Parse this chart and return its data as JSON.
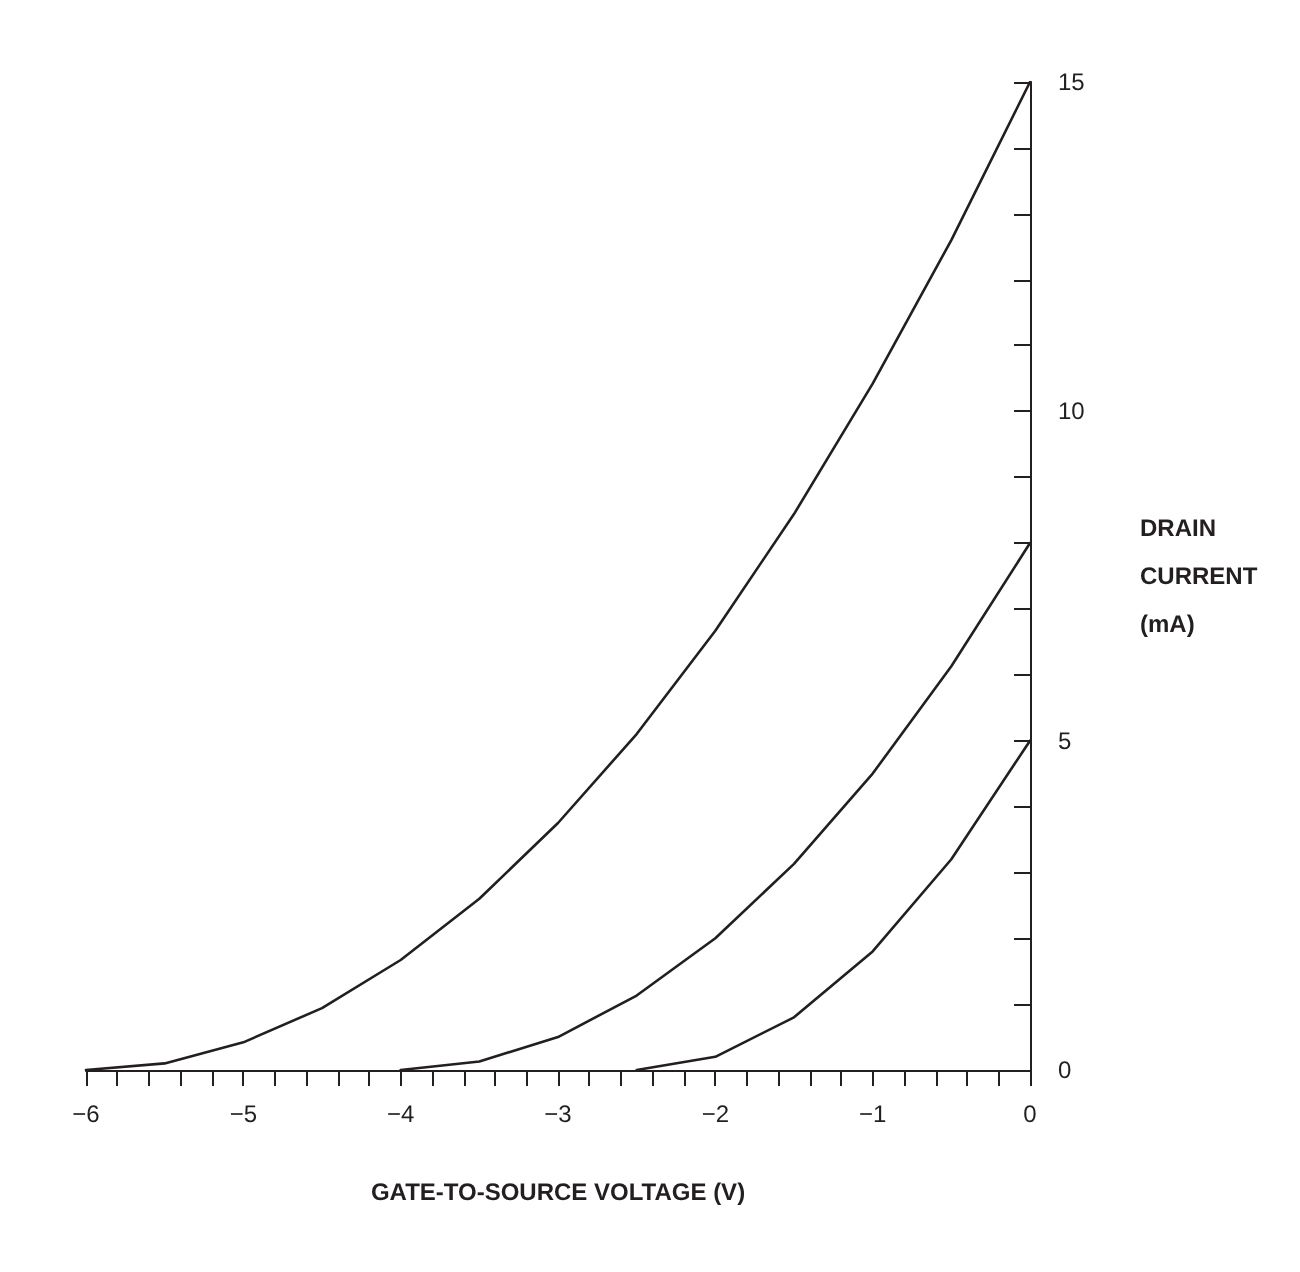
{
  "chart_data": {
    "type": "line",
    "xlabel": "GATE-TO-SOURCE VOLTAGE (V)",
    "ylabel": "DRAIN CURRENT (mA)",
    "series": [
      {
        "color": "#231f20",
        "x": [
          -6,
          -5.5,
          -5,
          -4.5,
          -4,
          -3.5,
          -3,
          -2.5,
          -2,
          -1.5,
          -1,
          -0.5,
          0
        ],
        "values": [
          0,
          0.1,
          0.42,
          0.94,
          1.67,
          2.6,
          3.75,
          5.1,
          6.67,
          8.44,
          10.42,
          12.6,
          15
        ]
      },
      {
        "color": "#231f20",
        "x": [
          -4,
          -3.5,
          -3,
          -2.5,
          -2,
          -1.5,
          -1,
          -0.5,
          0
        ],
        "values": [
          0,
          0.13,
          0.5,
          1.13,
          2,
          3.13,
          4.5,
          6.13,
          8
        ]
      },
      {
        "color": "#231f20",
        "x": [
          -2.5,
          -2,
          -1.5,
          -1,
          -0.5,
          0
        ],
        "values": [
          0,
          0.2,
          0.8,
          1.8,
          3.2,
          5
        ]
      }
    ],
    "xlim": [
      -6,
      0
    ],
    "xticks": [
      {
        "value": -6,
        "label": "−6"
      },
      {
        "value": -5.8,
        "label": null
      },
      {
        "value": -5.6,
        "label": null
      },
      {
        "value": -5.4,
        "label": null
      },
      {
        "value": -5.2,
        "label": null
      },
      {
        "value": -5,
        "label": "−5"
      },
      {
        "value": -4.8,
        "label": null
      },
      {
        "value": -4.6,
        "label": null
      },
      {
        "value": -4.4,
        "label": null
      },
      {
        "value": -4.2,
        "label": null
      },
      {
        "value": -4,
        "label": "−4"
      },
      {
        "value": -3.8,
        "label": null
      },
      {
        "value": -3.6,
        "label": null
      },
      {
        "value": -3.4,
        "label": null
      },
      {
        "value": -3.2,
        "label": null
      },
      {
        "value": -3,
        "label": "−3"
      },
      {
        "value": -2.8,
        "label": null
      },
      {
        "value": -2.6,
        "label": null
      },
      {
        "value": -2.4,
        "label": null
      },
      {
        "value": -2.2,
        "label": null
      },
      {
        "value": -2,
        "label": "−2"
      },
      {
        "value": -1.8,
        "label": null
      },
      {
        "value": -1.6,
        "label": null
      },
      {
        "value": -1.4,
        "label": null
      },
      {
        "value": -1.2,
        "label": null
      },
      {
        "value": -1,
        "label": "−1"
      },
      {
        "value": -0.8,
        "label": null
      },
      {
        "value": -0.6,
        "label": null
      },
      {
        "value": -0.4,
        "label": null
      },
      {
        "value": -0.2,
        "label": null
      },
      {
        "value": 0,
        "label": "0"
      }
    ],
    "ylim": [
      0,
      15
    ],
    "yticks": [
      0,
      {
        "value": 1,
        "label": null
      },
      {
        "value": 2,
        "label": null
      },
      {
        "value": 3,
        "label": null
      },
      {
        "value": 4,
        "label": null
      },
      5,
      {
        "value": 6,
        "label": null
      },
      {
        "value": 7,
        "label": null
      },
      {
        "value": 8,
        "label": null
      },
      {
        "value": 9,
        "label": null
      },
      10,
      {
        "value": 11,
        "label": null
      },
      {
        "value": 12,
        "label": null
      },
      {
        "value": 13,
        "label": null
      },
      {
        "value": 14,
        "label": null
      },
      15
    ],
    "grid": false,
    "marker": "none",
    "line_style": "solid"
  }
}
